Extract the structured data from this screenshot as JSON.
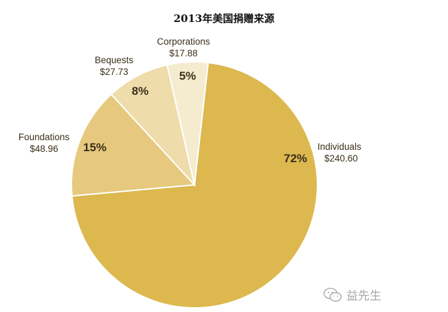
{
  "chart_data": {
    "type": "pie",
    "title": "2013年美国捐赠来源",
    "slices": [
      {
        "name": "Individuals",
        "value_label": "$240.60",
        "value": 240.6,
        "percent_label": "72%",
        "color": "#dcb84f"
      },
      {
        "name": "Foundations",
        "value_label": "$48.96",
        "value": 48.96,
        "percent_label": "15%",
        "color": "#e6c97e"
      },
      {
        "name": "Bequests",
        "value_label": "$27.73",
        "value": 27.73,
        "percent_label": "8%",
        "color": "#eedcaa"
      },
      {
        "name": "Corporations",
        "value_label": "$17.88",
        "value": 17.88,
        "percent_label": "5%",
        "color": "#f5ebce"
      }
    ]
  },
  "watermark": {
    "text": "益先生",
    "icon": "wechat-logo"
  }
}
